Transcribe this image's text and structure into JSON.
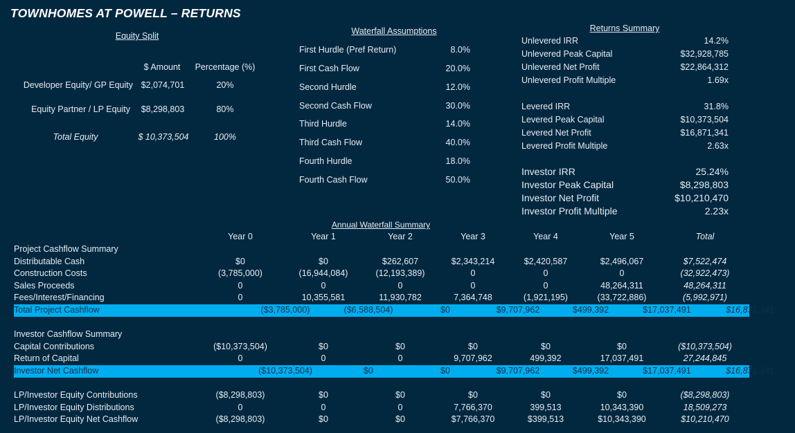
{
  "title": "TOWNHOMES AT POWELL – RETURNS",
  "equity_split": {
    "header": "Equity Split",
    "col_amount": "$ Amount",
    "col_pct": "Percentage (%)",
    "rows": [
      {
        "label": "Developer Equity/ GP Equity",
        "amount": "$2,074,701",
        "pct": "20%"
      },
      {
        "label": "Equity Partner / LP Equity",
        "amount": "$8,298,803",
        "pct": "80%"
      },
      {
        "label": "Total Equity",
        "amount": "$ 10,373,504",
        "pct": "100%"
      }
    ]
  },
  "waterfall_assumptions": {
    "header": "Waterfall Assumptions",
    "rows": [
      {
        "label": "First Hurdle (Pref Return)",
        "value": "8.0%"
      },
      {
        "label": "First Cash Flow",
        "value": "20.0%"
      },
      {
        "label": "Second Hurdle",
        "value": "12.0%"
      },
      {
        "label": "Second Cash Flow",
        "value": "30.0%"
      },
      {
        "label": "Third Hurdle",
        "value": "14.0%"
      },
      {
        "label": "Third Cash Flow",
        "value": "40.0%"
      },
      {
        "label": "Fourth Hurdle",
        "value": "18.0%"
      },
      {
        "label": "Fourth Cash Flow",
        "value": "50.0%"
      }
    ]
  },
  "returns_summary": {
    "header": "Returns Summary",
    "rows": [
      {
        "label": "Unlevered IRR",
        "value": "14.2%"
      },
      {
        "label": "Unlevered Peak Capital",
        "value": "$32,928,785"
      },
      {
        "label": "Unlevered Net Profit",
        "value": "$22,864,312"
      },
      {
        "label": "Unlevered Profit Multiple",
        "value": "1.69x"
      },
      {
        "label": "Levered IRR",
        "value": "31.8%"
      },
      {
        "label": "Levered Peak Capital",
        "value": "$10,373,504"
      },
      {
        "label": "Levered Net Profit",
        "value": "$16,871,341"
      },
      {
        "label": "Levered Profit Multiple",
        "value": "2.63x"
      },
      {
        "label": "Investor IRR",
        "value": "25.24%"
      },
      {
        "label": "Investor Peak Capital",
        "value": "$8,298,803"
      },
      {
        "label": "Investor Net Profit",
        "value": "$10,210,470"
      },
      {
        "label": "Investor Profit Multiple",
        "value": "2.23x"
      }
    ]
  },
  "annual": {
    "header": "Annual Waterfall Summary",
    "columns": [
      "Year 0",
      "Year 1",
      "Year 2",
      "Year 3",
      "Year 4",
      "Year 5",
      "Total"
    ],
    "rows": [
      {
        "label": "Project Cashflow Summary",
        "values": []
      },
      {
        "label": "Distributable Cash",
        "values": [
          "$0",
          "$0",
          "$262,607",
          "$2,343,214",
          "$2,420,587",
          "$2,496,067",
          "$7,522,474"
        ]
      },
      {
        "label": "Construction Costs",
        "values": [
          "(3,785,000)",
          "(16,944,084)",
          "(12,193,389)",
          "0",
          "0",
          "0",
          "(32,922,473)"
        ]
      },
      {
        "label": "Sales Proceeds",
        "values": [
          "0",
          "0",
          "0",
          "0",
          "0",
          "48,264,311",
          "48,264,311"
        ]
      },
      {
        "label": "Fees/Interest/Financing",
        "values": [
          "0",
          "10,355,581",
          "11,930,782",
          "7,364,748",
          "(1,921,195)",
          "(33,722,886)",
          "(5,992,971)"
        ]
      },
      {
        "label": "Total Project Cashflow",
        "highlight": true,
        "values": [
          "($3,785,000)",
          "($6,588,504)",
          "$0",
          "$9,707,962",
          "$499,392",
          "$17,037,491",
          "$16,871,341"
        ]
      },
      {
        "label": "",
        "values": []
      },
      {
        "label": "Investor Cashflow Summary",
        "values": []
      },
      {
        "label": "Capital Contributions",
        "values": [
          "($10,373,504)",
          "$0",
          "$0",
          "$0",
          "$0",
          "$0",
          "($10,373,504)"
        ]
      },
      {
        "label": "Return of Capital",
        "values": [
          "0",
          "0",
          "0",
          "9,707,962",
          "499,392",
          "17,037,491",
          "27,244,845"
        ]
      },
      {
        "label": "Investor Net Cashflow",
        "highlight": true,
        "values": [
          "($10,373,504)",
          "$0",
          "$0",
          "$9,707,962",
          "$499,392",
          "$17,037,491",
          "$16,871,341"
        ]
      },
      {
        "label": "",
        "values": []
      },
      {
        "label": "LP/Investor Equity Contributions",
        "values": [
          "($8,298,803)",
          "$0",
          "$0",
          "$0",
          "$0",
          "$0",
          "($8,298,803)"
        ]
      },
      {
        "label": "LP/Investor Equity Distributions",
        "values": [
          "0",
          "0",
          "0",
          "7,766,370",
          "399,513",
          "10,343,390",
          "18,509,273"
        ]
      },
      {
        "label": "LP/Investor Equity Net Cashflow",
        "values": [
          "($8,298,803)",
          "$0",
          "$0",
          "$7,766,370",
          "$399,513",
          "$10,343,390",
          "$10,210,470"
        ]
      }
    ]
  },
  "colors": {
    "background": "#022840",
    "highlight": "#00aeef"
  }
}
